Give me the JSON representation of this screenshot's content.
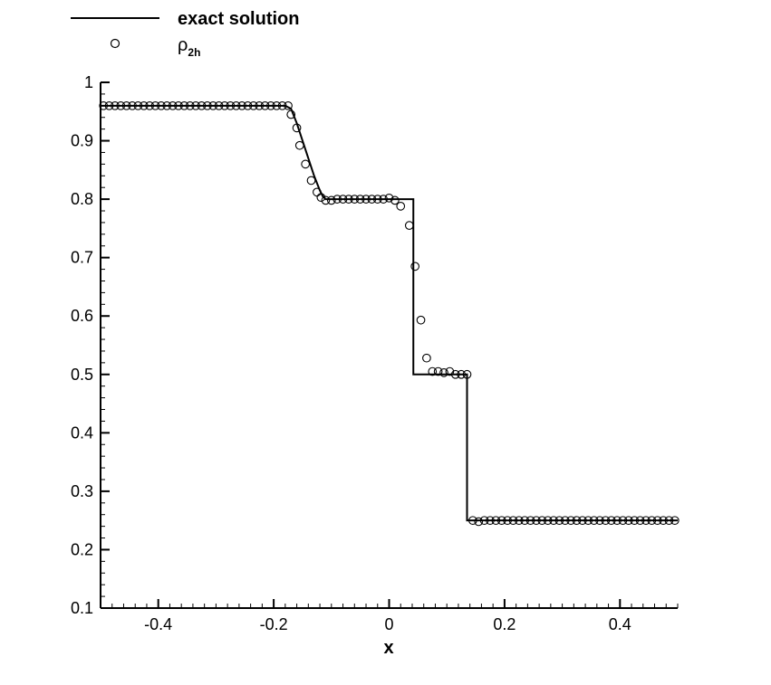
{
  "chart_data": {
    "type": "line",
    "xlabel": "x",
    "ylabel": "",
    "xlim": [
      -0.5,
      0.5
    ],
    "ylim": [
      0.1,
      1
    ],
    "xticks": [
      -0.4,
      -0.2,
      0,
      0.2,
      0.4
    ],
    "xtick_labels": [
      "-0.4",
      "-0.2",
      "0",
      "0.2",
      "0.4"
    ],
    "yticks": [
      0.1,
      0.2,
      0.3,
      0.4,
      0.5,
      0.6,
      0.7,
      0.8,
      0.9,
      1
    ],
    "ytick_labels": [
      "0.1",
      "0.2",
      "0.3",
      "0.4",
      "0.5",
      "0.6",
      "0.7",
      "0.8",
      "0.9",
      "1"
    ],
    "grid": false,
    "legend_position": "top-left",
    "legend": {
      "line_label": "exact solution",
      "marker_symbol": "ρ",
      "marker_subscript": "2h"
    },
    "series": [
      {
        "name": "exact solution",
        "style": "line",
        "color": "#000000",
        "x": [
          -0.5,
          -0.18,
          -0.17,
          -0.16,
          -0.15,
          -0.14,
          -0.13,
          -0.12,
          -0.115,
          -0.11,
          0.042,
          0.042,
          0.135,
          0.135,
          0.5
        ],
        "y": [
          0.96,
          0.96,
          0.955,
          0.93,
          0.9,
          0.87,
          0.84,
          0.815,
          0.805,
          0.8,
          0.8,
          0.5,
          0.5,
          0.25,
          0.25
        ]
      },
      {
        "name": "ρ2h",
        "style": "markers",
        "marker": "open-circle",
        "color": "#000000",
        "x": [
          -0.495,
          -0.485,
          -0.475,
          -0.465,
          -0.455,
          -0.445,
          -0.435,
          -0.425,
          -0.415,
          -0.405,
          -0.395,
          -0.385,
          -0.375,
          -0.365,
          -0.355,
          -0.345,
          -0.335,
          -0.325,
          -0.315,
          -0.305,
          -0.295,
          -0.285,
          -0.275,
          -0.265,
          -0.255,
          -0.245,
          -0.235,
          -0.225,
          -0.215,
          -0.205,
          -0.195,
          -0.185,
          -0.175,
          -0.17,
          -0.16,
          -0.155,
          -0.145,
          -0.135,
          -0.125,
          -0.118,
          -0.11,
          -0.1,
          -0.09,
          -0.08,
          -0.07,
          -0.06,
          -0.05,
          -0.04,
          -0.03,
          -0.02,
          -0.01,
          0,
          0.01,
          0.02,
          0.035,
          0.045,
          0.055,
          0.065,
          0.075,
          0.085,
          0.095,
          0.105,
          0.115,
          0.125,
          0.135,
          0.145,
          0.155,
          0.165,
          0.175,
          0.185,
          0.195,
          0.205,
          0.215,
          0.225,
          0.235,
          0.245,
          0.255,
          0.265,
          0.275,
          0.285,
          0.295,
          0.305,
          0.315,
          0.325,
          0.335,
          0.345,
          0.355,
          0.365,
          0.375,
          0.385,
          0.395,
          0.405,
          0.415,
          0.425,
          0.435,
          0.445,
          0.455,
          0.465,
          0.475,
          0.485,
          0.495
        ],
        "y": [
          0.96,
          0.96,
          0.96,
          0.96,
          0.96,
          0.96,
          0.96,
          0.96,
          0.96,
          0.96,
          0.96,
          0.96,
          0.96,
          0.96,
          0.96,
          0.96,
          0.96,
          0.96,
          0.96,
          0.96,
          0.96,
          0.96,
          0.96,
          0.96,
          0.96,
          0.96,
          0.96,
          0.96,
          0.96,
          0.96,
          0.96,
          0.96,
          0.96,
          0.945,
          0.922,
          0.892,
          0.86,
          0.832,
          0.812,
          0.803,
          0.798,
          0.798,
          0.8,
          0.8,
          0.8,
          0.8,
          0.8,
          0.8,
          0.8,
          0.8,
          0.8,
          0.802,
          0.798,
          0.788,
          0.755,
          0.685,
          0.593,
          0.528,
          0.505,
          0.505,
          0.503,
          0.505,
          0.5,
          0.5,
          0.5,
          0.25,
          0.248,
          0.25,
          0.25,
          0.25,
          0.25,
          0.25,
          0.25,
          0.25,
          0.25,
          0.25,
          0.25,
          0.25,
          0.25,
          0.25,
          0.25,
          0.25,
          0.25,
          0.25,
          0.25,
          0.25,
          0.25,
          0.25,
          0.25,
          0.25,
          0.25,
          0.25,
          0.25,
          0.25,
          0.25,
          0.25,
          0.25,
          0.25,
          0.25,
          0.25,
          0.25
        ]
      }
    ]
  }
}
